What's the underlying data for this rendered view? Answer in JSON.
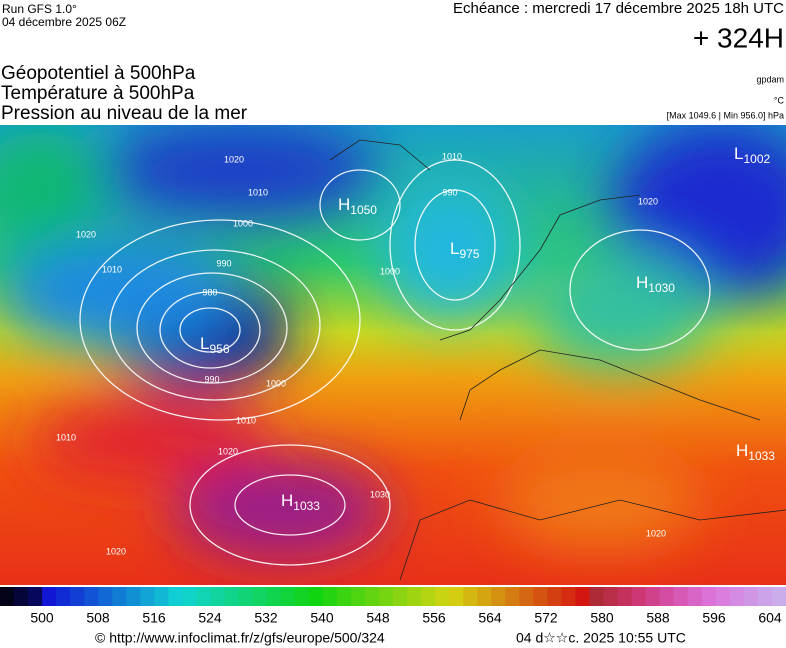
{
  "header": {
    "run": "Run GFS 1.0°",
    "date": "04 décembre 2025 06Z",
    "valid": "Echéance : mercredi 17 décembre 2025 18h UTC",
    "lead": "+ 324H"
  },
  "fields": [
    "Géopotentiel à 500hPa",
    "Température à 500hPa",
    "Pression au niveau de la mer"
  ],
  "units": {
    "geo": "gpdam",
    "temp": "°C",
    "range": "[Max 1049.6 | Min 956.0] hPa"
  },
  "centers": [
    {
      "letter": "L",
      "value": 956
    },
    {
      "letter": "H",
      "value": 1050
    },
    {
      "letter": "L",
      "value": 975
    },
    {
      "letter": "H",
      "value": 1030
    },
    {
      "letter": "L",
      "value": 1002
    },
    {
      "letter": "H",
      "value": 1033
    },
    {
      "letter": "H",
      "value": 1033
    }
  ],
  "isobar_labels": [
    990,
    980,
    990,
    1000,
    1010,
    1020,
    1010,
    1000,
    1010,
    1020,
    1010,
    1000,
    990,
    1010,
    1020,
    1020,
    1020,
    1030,
    1020
  ],
  "colorbar_ticks": [
    500,
    508,
    516,
    524,
    532,
    540,
    548,
    556,
    564,
    572,
    580,
    588,
    596,
    604
  ],
  "footer": {
    "url": "© http://www.infoclimat.fr/z/gfs/europe/500/324",
    "stamp": "04 d☆☆c. 2025 10:55 UTC"
  }
}
